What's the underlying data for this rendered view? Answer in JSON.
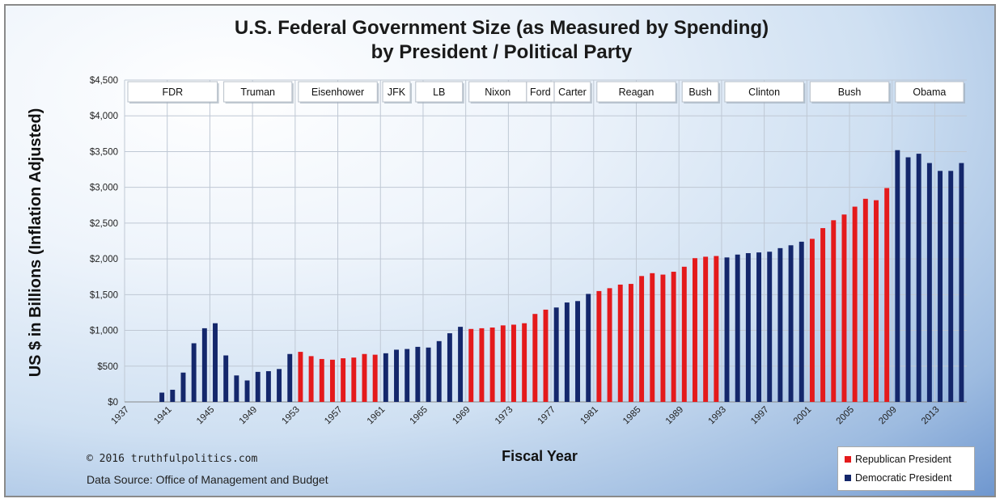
{
  "title_line1": "U.S. Federal Government Size (as Measured by Spending)",
  "title_line2": "by President / Political Party",
  "credit": "© 2016 truthfulpolitics.com",
  "data_source": "Data Source:  Office of Management and Budget",
  "colors": {
    "republican": "#e41a1c",
    "democratic": "#14276b"
  },
  "chart_data": {
    "type": "bar",
    "xlabel": "Fiscal Year",
    "ylabel": "US $ in Billions (Inflation Adjusted)",
    "ylim": [
      0,
      4500
    ],
    "yticks": [
      "$0",
      "$500",
      "$1,000",
      "$1,500",
      "$2,000",
      "$2,500",
      "$3,000",
      "$3,500",
      "$4,000",
      "$4,500"
    ],
    "ytick_values": [
      0,
      500,
      1000,
      1500,
      2000,
      2500,
      3000,
      3500,
      4000,
      4500
    ],
    "xticks": [
      "1937",
      "1941",
      "1945",
      "1949",
      "1953",
      "1957",
      "1961",
      "1965",
      "1969",
      "1973",
      "1977",
      "1981",
      "1985",
      "1989",
      "1993",
      "1997",
      "2001",
      "2005",
      "2009",
      "2013"
    ],
    "grid": true,
    "legend_position": "bottom-right",
    "legend": [
      {
        "label": "Republican President",
        "party": "R"
      },
      {
        "label": "Democratic President",
        "party": "D"
      }
    ],
    "presidents": [
      {
        "name": "FDR",
        "start": 1937,
        "end": 1945
      },
      {
        "name": "Truman",
        "start": 1946,
        "end": 1952
      },
      {
        "name": "Eisenhower",
        "start": 1953,
        "end": 1960
      },
      {
        "name": "JFK",
        "start": 1961,
        "end": 1963
      },
      {
        "name": "LB",
        "start": 1964,
        "end": 1968
      },
      {
        "name": "Nixon",
        "start": 1969,
        "end": 1974
      },
      {
        "name": "Ford",
        "start": 1975,
        "end": 1976
      },
      {
        "name": "Carter",
        "start": 1977,
        "end": 1980
      },
      {
        "name": "Reagan",
        "start": 1981,
        "end": 1988
      },
      {
        "name": "Bush",
        "start": 1989,
        "end": 1992
      },
      {
        "name": "Clinton",
        "start": 1993,
        "end": 2000
      },
      {
        "name": "Bush",
        "start": 2001,
        "end": 2008
      },
      {
        "name": "Obama",
        "start": 2009,
        "end": 2015
      }
    ],
    "bars": [
      {
        "year": 1937,
        "value": 0,
        "party": "D"
      },
      {
        "year": 1938,
        "value": 0,
        "party": "D"
      },
      {
        "year": 1939,
        "value": 0,
        "party": "D"
      },
      {
        "year": 1940,
        "value": 130,
        "party": "D"
      },
      {
        "year": 1941,
        "value": 170,
        "party": "D"
      },
      {
        "year": 1942,
        "value": 410,
        "party": "D"
      },
      {
        "year": 1943,
        "value": 820,
        "party": "D"
      },
      {
        "year": 1944,
        "value": 1030,
        "party": "D"
      },
      {
        "year": 1945,
        "value": 1100,
        "party": "D"
      },
      {
        "year": 1946,
        "value": 650,
        "party": "D"
      },
      {
        "year": 1947,
        "value": 370,
        "party": "D"
      },
      {
        "year": 1948,
        "value": 300,
        "party": "D"
      },
      {
        "year": 1949,
        "value": 420,
        "party": "D"
      },
      {
        "year": 1950,
        "value": 430,
        "party": "D"
      },
      {
        "year": 1951,
        "value": 460,
        "party": "D"
      },
      {
        "year": 1952,
        "value": 670,
        "party": "D"
      },
      {
        "year": 1953,
        "value": 700,
        "party": "R"
      },
      {
        "year": 1954,
        "value": 640,
        "party": "R"
      },
      {
        "year": 1955,
        "value": 600,
        "party": "R"
      },
      {
        "year": 1956,
        "value": 590,
        "party": "R"
      },
      {
        "year": 1957,
        "value": 610,
        "party": "R"
      },
      {
        "year": 1958,
        "value": 620,
        "party": "R"
      },
      {
        "year": 1959,
        "value": 670,
        "party": "R"
      },
      {
        "year": 1960,
        "value": 660,
        "party": "R"
      },
      {
        "year": 1961,
        "value": 680,
        "party": "D"
      },
      {
        "year": 1962,
        "value": 730,
        "party": "D"
      },
      {
        "year": 1963,
        "value": 740,
        "party": "D"
      },
      {
        "year": 1964,
        "value": 770,
        "party": "D"
      },
      {
        "year": 1965,
        "value": 760,
        "party": "D"
      },
      {
        "year": 1966,
        "value": 850,
        "party": "D"
      },
      {
        "year": 1967,
        "value": 960,
        "party": "D"
      },
      {
        "year": 1968,
        "value": 1050,
        "party": "D"
      },
      {
        "year": 1969,
        "value": 1020,
        "party": "R"
      },
      {
        "year": 1970,
        "value": 1030,
        "party": "R"
      },
      {
        "year": 1971,
        "value": 1040,
        "party": "R"
      },
      {
        "year": 1972,
        "value": 1070,
        "party": "R"
      },
      {
        "year": 1973,
        "value": 1080,
        "party": "R"
      },
      {
        "year": 1974,
        "value": 1100,
        "party": "R"
      },
      {
        "year": 1975,
        "value": 1230,
        "party": "R"
      },
      {
        "year": 1976,
        "value": 1290,
        "party": "R"
      },
      {
        "year": 1977,
        "value": 1320,
        "party": "D"
      },
      {
        "year": 1978,
        "value": 1390,
        "party": "D"
      },
      {
        "year": 1979,
        "value": 1410,
        "party": "D"
      },
      {
        "year": 1980,
        "value": 1510,
        "party": "D"
      },
      {
        "year": 1981,
        "value": 1550,
        "party": "R"
      },
      {
        "year": 1982,
        "value": 1590,
        "party": "R"
      },
      {
        "year": 1983,
        "value": 1640,
        "party": "R"
      },
      {
        "year": 1984,
        "value": 1650,
        "party": "R"
      },
      {
        "year": 1985,
        "value": 1760,
        "party": "R"
      },
      {
        "year": 1986,
        "value": 1800,
        "party": "R"
      },
      {
        "year": 1987,
        "value": 1780,
        "party": "R"
      },
      {
        "year": 1988,
        "value": 1820,
        "party": "R"
      },
      {
        "year": 1989,
        "value": 1890,
        "party": "R"
      },
      {
        "year": 1990,
        "value": 2010,
        "party": "R"
      },
      {
        "year": 1991,
        "value": 2030,
        "party": "R"
      },
      {
        "year": 1992,
        "value": 2040,
        "party": "R"
      },
      {
        "year": 1993,
        "value": 2020,
        "party": "D"
      },
      {
        "year": 1994,
        "value": 2060,
        "party": "D"
      },
      {
        "year": 1995,
        "value": 2080,
        "party": "D"
      },
      {
        "year": 1996,
        "value": 2090,
        "party": "D"
      },
      {
        "year": 1997,
        "value": 2100,
        "party": "D"
      },
      {
        "year": 1998,
        "value": 2150,
        "party": "D"
      },
      {
        "year": 1999,
        "value": 2190,
        "party": "D"
      },
      {
        "year": 2000,
        "value": 2240,
        "party": "D"
      },
      {
        "year": 2001,
        "value": 2280,
        "party": "R"
      },
      {
        "year": 2002,
        "value": 2430,
        "party": "R"
      },
      {
        "year": 2003,
        "value": 2540,
        "party": "R"
      },
      {
        "year": 2004,
        "value": 2620,
        "party": "R"
      },
      {
        "year": 2005,
        "value": 2730,
        "party": "R"
      },
      {
        "year": 2006,
        "value": 2840,
        "party": "R"
      },
      {
        "year": 2007,
        "value": 2820,
        "party": "R"
      },
      {
        "year": 2008,
        "value": 2990,
        "party": "R"
      },
      {
        "year": 2009,
        "value": 3520,
        "party": "D"
      },
      {
        "year": 2010,
        "value": 3420,
        "party": "D"
      },
      {
        "year": 2011,
        "value": 3470,
        "party": "D"
      },
      {
        "year": 2012,
        "value": 3340,
        "party": "D"
      },
      {
        "year": 2013,
        "value": 3230,
        "party": "D"
      },
      {
        "year": 2014,
        "value": 3230,
        "party": "D"
      },
      {
        "year": 2015,
        "value": 3340,
        "party": "D"
      }
    ]
  }
}
